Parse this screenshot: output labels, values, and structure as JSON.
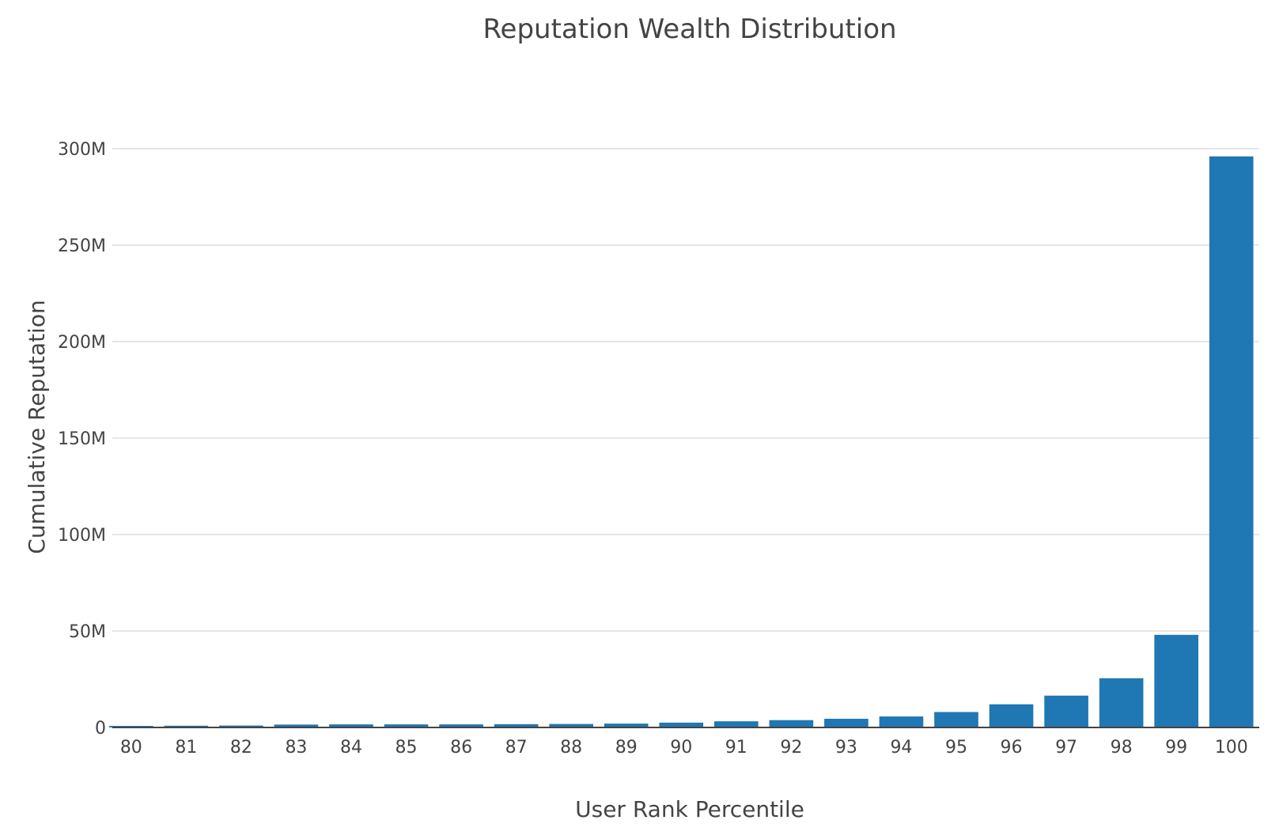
{
  "chart_data": {
    "type": "bar",
    "title": "Reputation Wealth Distribution",
    "xlabel": "User Rank Percentile",
    "ylabel": "Cumulative Reputation",
    "categories": [
      "80",
      "81",
      "82",
      "83",
      "84",
      "85",
      "86",
      "87",
      "88",
      "89",
      "90",
      "91",
      "92",
      "93",
      "94",
      "95",
      "96",
      "97",
      "98",
      "99",
      "100"
    ],
    "values": [
      0.8,
      0.9,
      1.0,
      1.5,
      1.6,
      1.6,
      1.6,
      1.7,
      1.8,
      2.0,
      2.5,
      3.2,
      3.8,
      4.5,
      5.7,
      8.0,
      12.0,
      16.5,
      25.5,
      48.0,
      296.0
    ],
    "value_unit": "millions",
    "ylim": [
      0,
      300
    ],
    "yticks": [
      0,
      50,
      100,
      150,
      200,
      250,
      300
    ],
    "ytick_labels": [
      "0",
      "50M",
      "100M",
      "150M",
      "200M",
      "250M",
      "300M"
    ],
    "bar_color": "#1f77b4",
    "grid": true
  }
}
